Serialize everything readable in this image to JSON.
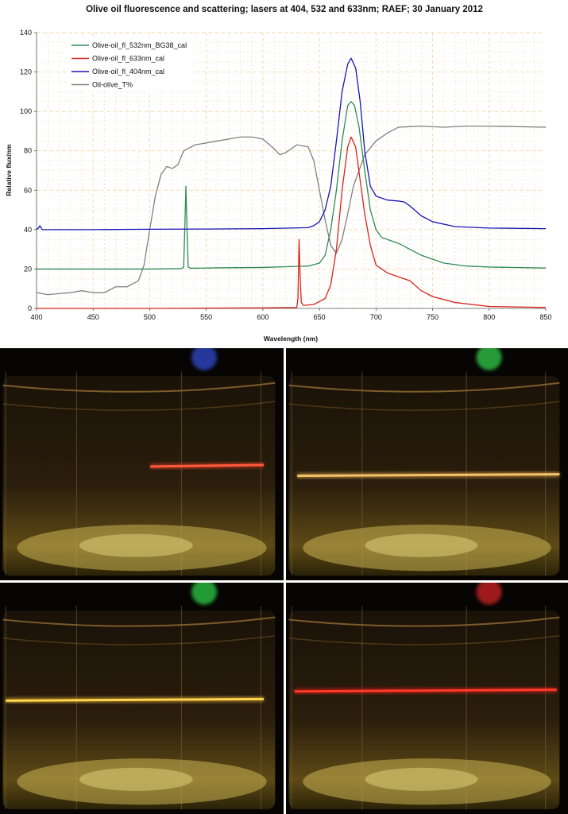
{
  "chart_data": {
    "type": "line",
    "title": "Olive oil fluorescence and scattering; lasers at 404, 532 and 633nm; RAEF; 30 January 2012",
    "xlabel": "Wavelength (nm)",
    "ylabel": "Relative flux/nm",
    "xlim": [
      400,
      850
    ],
    "ylim": [
      0,
      140
    ],
    "xticks": [
      400,
      450,
      500,
      550,
      600,
      650,
      700,
      750,
      800,
      850
    ],
    "yticks": [
      0,
      20,
      40,
      60,
      80,
      100,
      120,
      140
    ],
    "grid": true,
    "legend_position": "top-left",
    "series": [
      {
        "name": "Olive-oil_fl_532nm_BG38_cal",
        "color": "#2e8b57",
        "points": [
          [
            400,
            20
          ],
          [
            450,
            20
          ],
          [
            500,
            20
          ],
          [
            528,
            20.2
          ],
          [
            530,
            21
          ],
          [
            531,
            40
          ],
          [
            532,
            62
          ],
          [
            533,
            40
          ],
          [
            534,
            21
          ],
          [
            536,
            20.4
          ],
          [
            560,
            20.6
          ],
          [
            600,
            20.8
          ],
          [
            640,
            21.5
          ],
          [
            650,
            23
          ],
          [
            655,
            27
          ],
          [
            660,
            40
          ],
          [
            665,
            60
          ],
          [
            670,
            85
          ],
          [
            675,
            103
          ],
          [
            678,
            105
          ],
          [
            681,
            103
          ],
          [
            685,
            92
          ],
          [
            690,
            70
          ],
          [
            695,
            50
          ],
          [
            700,
            40
          ],
          [
            705,
            36
          ],
          [
            710,
            35
          ],
          [
            720,
            33
          ],
          [
            730,
            30
          ],
          [
            740,
            27
          ],
          [
            760,
            23
          ],
          [
            780,
            21.5
          ],
          [
            800,
            21
          ],
          [
            850,
            20.5
          ]
        ]
      },
      {
        "name": "Olive-oil_fl_633nm_cal",
        "color": "#d9231b",
        "points": [
          [
            400,
            0
          ],
          [
            500,
            0
          ],
          [
            600,
            0.3
          ],
          [
            630,
            0.5
          ],
          [
            631,
            5
          ],
          [
            632,
            35
          ],
          [
            633,
            15
          ],
          [
            634,
            3
          ],
          [
            636,
            1.5
          ],
          [
            645,
            2
          ],
          [
            655,
            5
          ],
          [
            660,
            12
          ],
          [
            665,
            30
          ],
          [
            670,
            60
          ],
          [
            675,
            82
          ],
          [
            678,
            87
          ],
          [
            682,
            82
          ],
          [
            686,
            65
          ],
          [
            690,
            48
          ],
          [
            695,
            32
          ],
          [
            700,
            22
          ],
          [
            710,
            18
          ],
          [
            720,
            16
          ],
          [
            730,
            14
          ],
          [
            740,
            9
          ],
          [
            750,
            6
          ],
          [
            770,
            3
          ],
          [
            800,
            1
          ],
          [
            850,
            0.5
          ]
        ]
      },
      {
        "name": "Olive-oil_fl_404nm_cal",
        "color": "#1515b8",
        "points": [
          [
            400,
            40
          ],
          [
            402,
            41
          ],
          [
            403,
            42
          ],
          [
            405,
            40
          ],
          [
            450,
            40
          ],
          [
            500,
            40.2
          ],
          [
            550,
            40.3
          ],
          [
            600,
            40.5
          ],
          [
            640,
            41
          ],
          [
            645,
            42
          ],
          [
            650,
            44
          ],
          [
            655,
            50
          ],
          [
            660,
            62
          ],
          [
            665,
            85
          ],
          [
            670,
            110
          ],
          [
            675,
            124
          ],
          [
            678,
            127
          ],
          [
            682,
            122
          ],
          [
            686,
            105
          ],
          [
            690,
            80
          ],
          [
            695,
            62
          ],
          [
            700,
            57
          ],
          [
            710,
            55
          ],
          [
            720,
            54.5
          ],
          [
            725,
            54
          ],
          [
            730,
            52
          ],
          [
            740,
            47
          ],
          [
            750,
            44
          ],
          [
            770,
            41.5
          ],
          [
            800,
            40.8
          ],
          [
            850,
            40.5
          ]
        ]
      },
      {
        "name": "Oil-olive_T%",
        "color": "#808080",
        "points": [
          [
            400,
            8
          ],
          [
            410,
            7
          ],
          [
            420,
            7.5
          ],
          [
            430,
            8
          ],
          [
            440,
            9
          ],
          [
            450,
            8
          ],
          [
            460,
            8
          ],
          [
            470,
            11
          ],
          [
            480,
            11
          ],
          [
            490,
            14
          ],
          [
            495,
            22
          ],
          [
            500,
            40
          ],
          [
            505,
            57
          ],
          [
            510,
            68
          ],
          [
            515,
            72
          ],
          [
            520,
            71
          ],
          [
            525,
            73
          ],
          [
            530,
            80
          ],
          [
            540,
            83
          ],
          [
            550,
            84
          ],
          [
            560,
            85
          ],
          [
            570,
            86
          ],
          [
            580,
            87
          ],
          [
            590,
            87
          ],
          [
            600,
            86
          ],
          [
            610,
            81
          ],
          [
            615,
            78
          ],
          [
            620,
            79
          ],
          [
            630,
            83
          ],
          [
            640,
            82
          ],
          [
            645,
            75
          ],
          [
            650,
            60
          ],
          [
            655,
            45
          ],
          [
            660,
            32
          ],
          [
            665,
            28
          ],
          [
            670,
            35
          ],
          [
            675,
            48
          ],
          [
            680,
            62
          ],
          [
            690,
            78
          ],
          [
            700,
            85
          ],
          [
            710,
            89
          ],
          [
            720,
            92
          ],
          [
            740,
            92.5
          ],
          [
            760,
            92
          ],
          [
            780,
            92.5
          ],
          [
            800,
            92.5
          ],
          [
            850,
            92
          ]
        ]
      }
    ]
  },
  "photos": {
    "panels": [
      {
        "position": "top-left",
        "beam_color": "#e8402a",
        "beam_color2": "#ff5a3c",
        "glow_color": "#3a5bff"
      },
      {
        "position": "top-right",
        "beam_color": "#e8a24a",
        "beam_color2": "#f2c268",
        "glow_color": "#3cff5a"
      },
      {
        "position": "bottom-left",
        "beam_color": "#e7b238",
        "beam_color2": "#ffd34e",
        "glow_color": "#35ff56"
      },
      {
        "position": "bottom-right",
        "beam_color": "#ee1b1b",
        "beam_color2": "#ff3a2a",
        "glow_color": "#ff2a2a"
      }
    ]
  }
}
